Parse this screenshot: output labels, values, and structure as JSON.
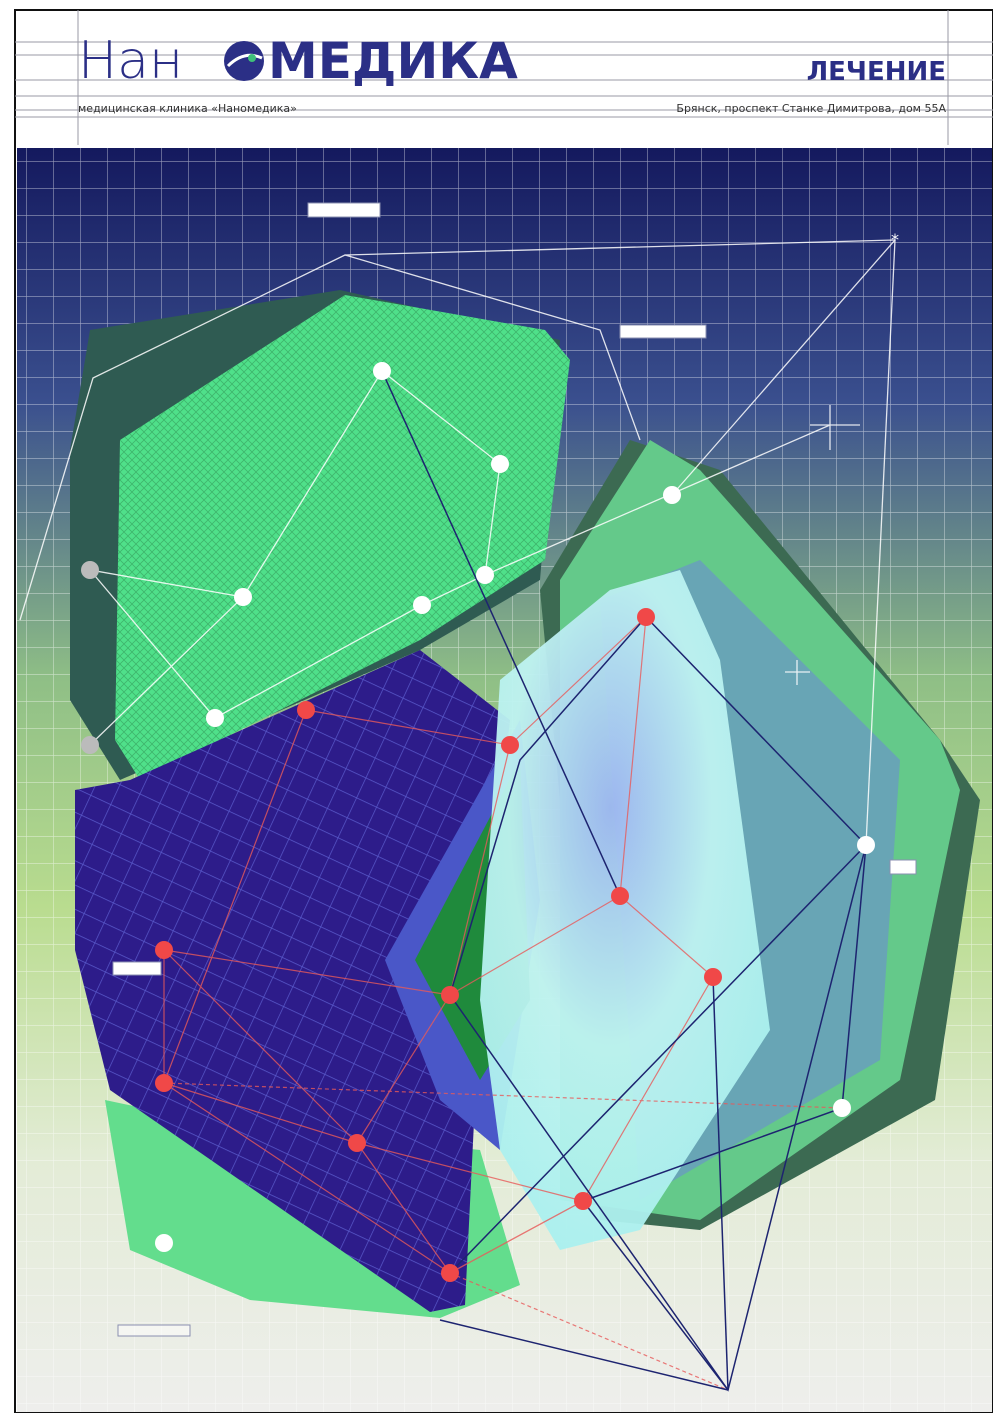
{
  "header": {
    "logo_left": "Нан",
    "logo_right": "МЕДИКА",
    "section": "ЛЕЧЕНИЕ",
    "clinic": "медицинская клиника «Наномедика»",
    "address": "Брянск, проспект Станке Димитрова, дом 55А"
  }
}
